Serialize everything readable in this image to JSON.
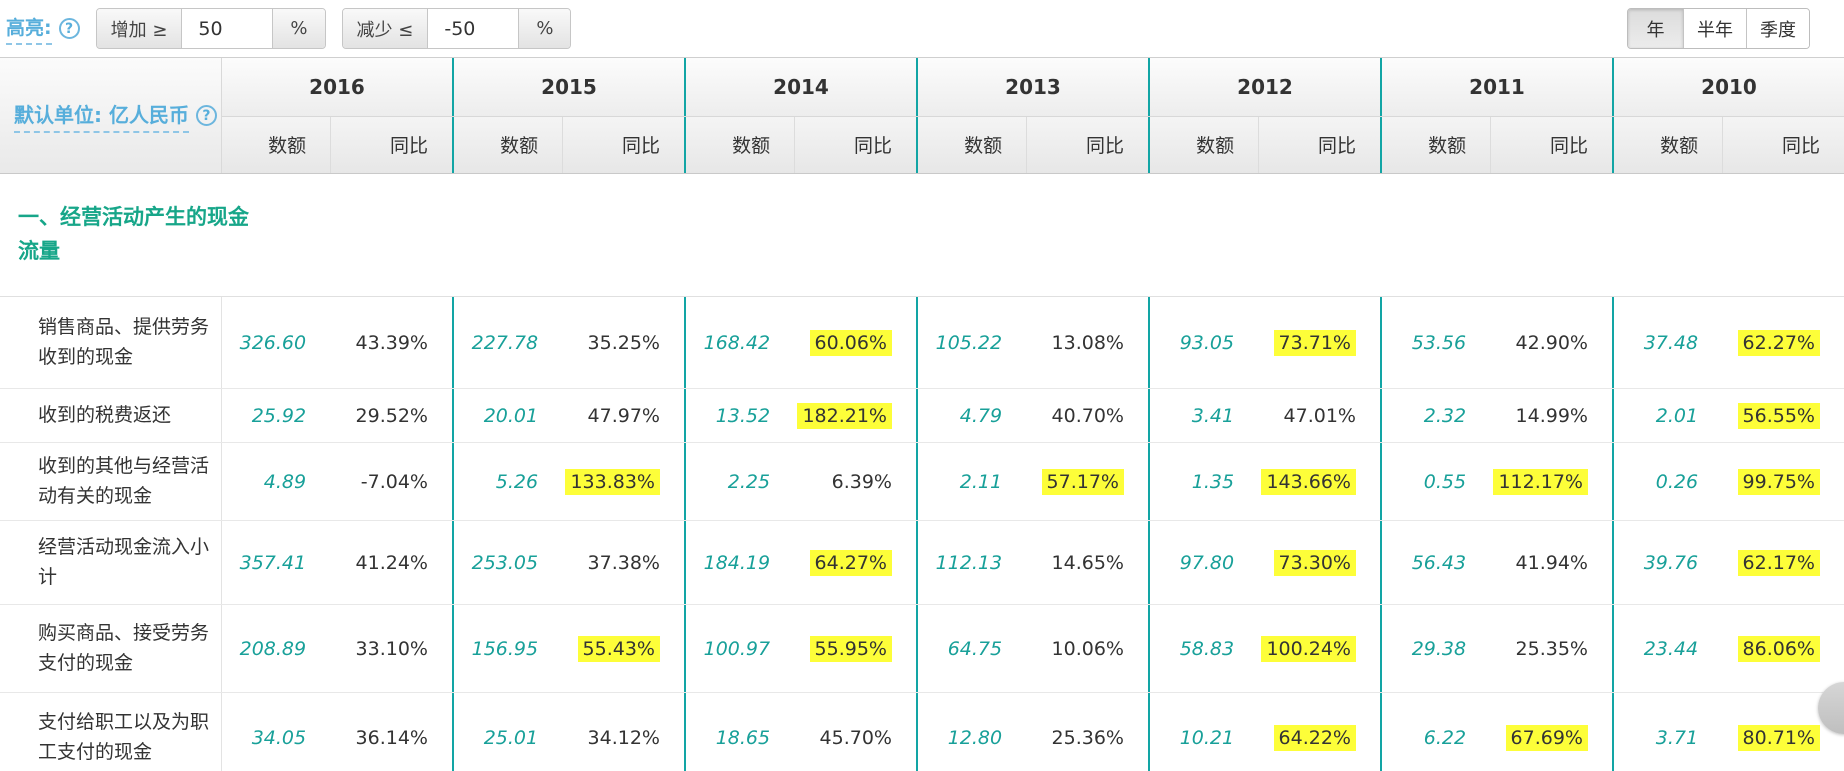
{
  "colors": {
    "teal_separator": "#12a5a5",
    "teal_value": "#18a099",
    "section_title_teal": "#17a689",
    "link_blue": "#57aedb",
    "highlight_yellow": "#fdfe39"
  },
  "toolbar": {
    "highlight_label": "高亮:",
    "help_icon": "?",
    "increase": {
      "label": "增加 ≥",
      "value": "50",
      "unit": "%"
    },
    "decrease": {
      "label": "减少 ≤",
      "value": "-50",
      "unit": "%"
    },
    "period_buttons": [
      {
        "label": "年",
        "active": true
      },
      {
        "label": "半年",
        "active": false
      },
      {
        "label": "季度",
        "active": false
      }
    ]
  },
  "table": {
    "unit_label": "默认单位: 亿人民币",
    "years": [
      "2016",
      "2015",
      "2014",
      "2013",
      "2012",
      "2011",
      "2010"
    ],
    "subheaders": {
      "amount": "数额",
      "yoy": "同比"
    },
    "section_title": "一、经营活动产生的现金流量",
    "rows": [
      {
        "label": "销售商品、提供劳务收到的现金",
        "cells": [
          {
            "amount": "326.60",
            "yoy": "43.39%",
            "highlight": false
          },
          {
            "amount": "227.78",
            "yoy": "35.25%",
            "highlight": false
          },
          {
            "amount": "168.42",
            "yoy": "60.06%",
            "highlight": true
          },
          {
            "amount": "105.22",
            "yoy": "13.08%",
            "highlight": false
          },
          {
            "amount": "93.05",
            "yoy": "73.71%",
            "highlight": true
          },
          {
            "amount": "53.56",
            "yoy": "42.90%",
            "highlight": false
          },
          {
            "amount": "37.48",
            "yoy": "62.27%",
            "highlight": true
          }
        ]
      },
      {
        "label": "收到的税费返还",
        "cells": [
          {
            "amount": "25.92",
            "yoy": "29.52%",
            "highlight": false
          },
          {
            "amount": "20.01",
            "yoy": "47.97%",
            "highlight": false
          },
          {
            "amount": "13.52",
            "yoy": "182.21%",
            "highlight": true
          },
          {
            "amount": "4.79",
            "yoy": "40.70%",
            "highlight": false
          },
          {
            "amount": "3.41",
            "yoy": "47.01%",
            "highlight": false
          },
          {
            "amount": "2.32",
            "yoy": "14.99%",
            "highlight": false
          },
          {
            "amount": "2.01",
            "yoy": "56.55%",
            "highlight": true
          }
        ]
      },
      {
        "label": "收到的其他与经营活动有关的现金",
        "cells": [
          {
            "amount": "4.89",
            "yoy": "-7.04%",
            "highlight": false
          },
          {
            "amount": "5.26",
            "yoy": "133.83%",
            "highlight": true
          },
          {
            "amount": "2.25",
            "yoy": "6.39%",
            "highlight": false
          },
          {
            "amount": "2.11",
            "yoy": "57.17%",
            "highlight": true
          },
          {
            "amount": "1.35",
            "yoy": "143.66%",
            "highlight": true
          },
          {
            "amount": "0.55",
            "yoy": "112.17%",
            "highlight": true
          },
          {
            "amount": "0.26",
            "yoy": "99.75%",
            "highlight": true
          }
        ]
      },
      {
        "label": "经营活动现金流入小计",
        "cells": [
          {
            "amount": "357.41",
            "yoy": "41.24%",
            "highlight": false
          },
          {
            "amount": "253.05",
            "yoy": "37.38%",
            "highlight": false
          },
          {
            "amount": "184.19",
            "yoy": "64.27%",
            "highlight": true
          },
          {
            "amount": "112.13",
            "yoy": "14.65%",
            "highlight": false
          },
          {
            "amount": "97.80",
            "yoy": "73.30%",
            "highlight": true
          },
          {
            "amount": "56.43",
            "yoy": "41.94%",
            "highlight": false
          },
          {
            "amount": "39.76",
            "yoy": "62.17%",
            "highlight": true
          }
        ]
      },
      {
        "label": "购买商品、接受劳务支付的现金",
        "cells": [
          {
            "amount": "208.89",
            "yoy": "33.10%",
            "highlight": false
          },
          {
            "amount": "156.95",
            "yoy": "55.43%",
            "highlight": true
          },
          {
            "amount": "100.97",
            "yoy": "55.95%",
            "highlight": true
          },
          {
            "amount": "64.75",
            "yoy": "10.06%",
            "highlight": false
          },
          {
            "amount": "58.83",
            "yoy": "100.24%",
            "highlight": true
          },
          {
            "amount": "29.38",
            "yoy": "25.35%",
            "highlight": false
          },
          {
            "amount": "23.44",
            "yoy": "86.06%",
            "highlight": true
          }
        ]
      },
      {
        "label": "支付给职工以及为职工支付的现金",
        "cells": [
          {
            "amount": "34.05",
            "yoy": "36.14%",
            "highlight": false
          },
          {
            "amount": "25.01",
            "yoy": "34.12%",
            "highlight": false
          },
          {
            "amount": "18.65",
            "yoy": "45.70%",
            "highlight": false
          },
          {
            "amount": "12.80",
            "yoy": "25.36%",
            "highlight": false
          },
          {
            "amount": "10.21",
            "yoy": "64.22%",
            "highlight": true
          },
          {
            "amount": "6.22",
            "yoy": "67.69%",
            "highlight": true
          },
          {
            "amount": "3.71",
            "yoy": "80.71%",
            "highlight": true
          }
        ]
      }
    ]
  }
}
